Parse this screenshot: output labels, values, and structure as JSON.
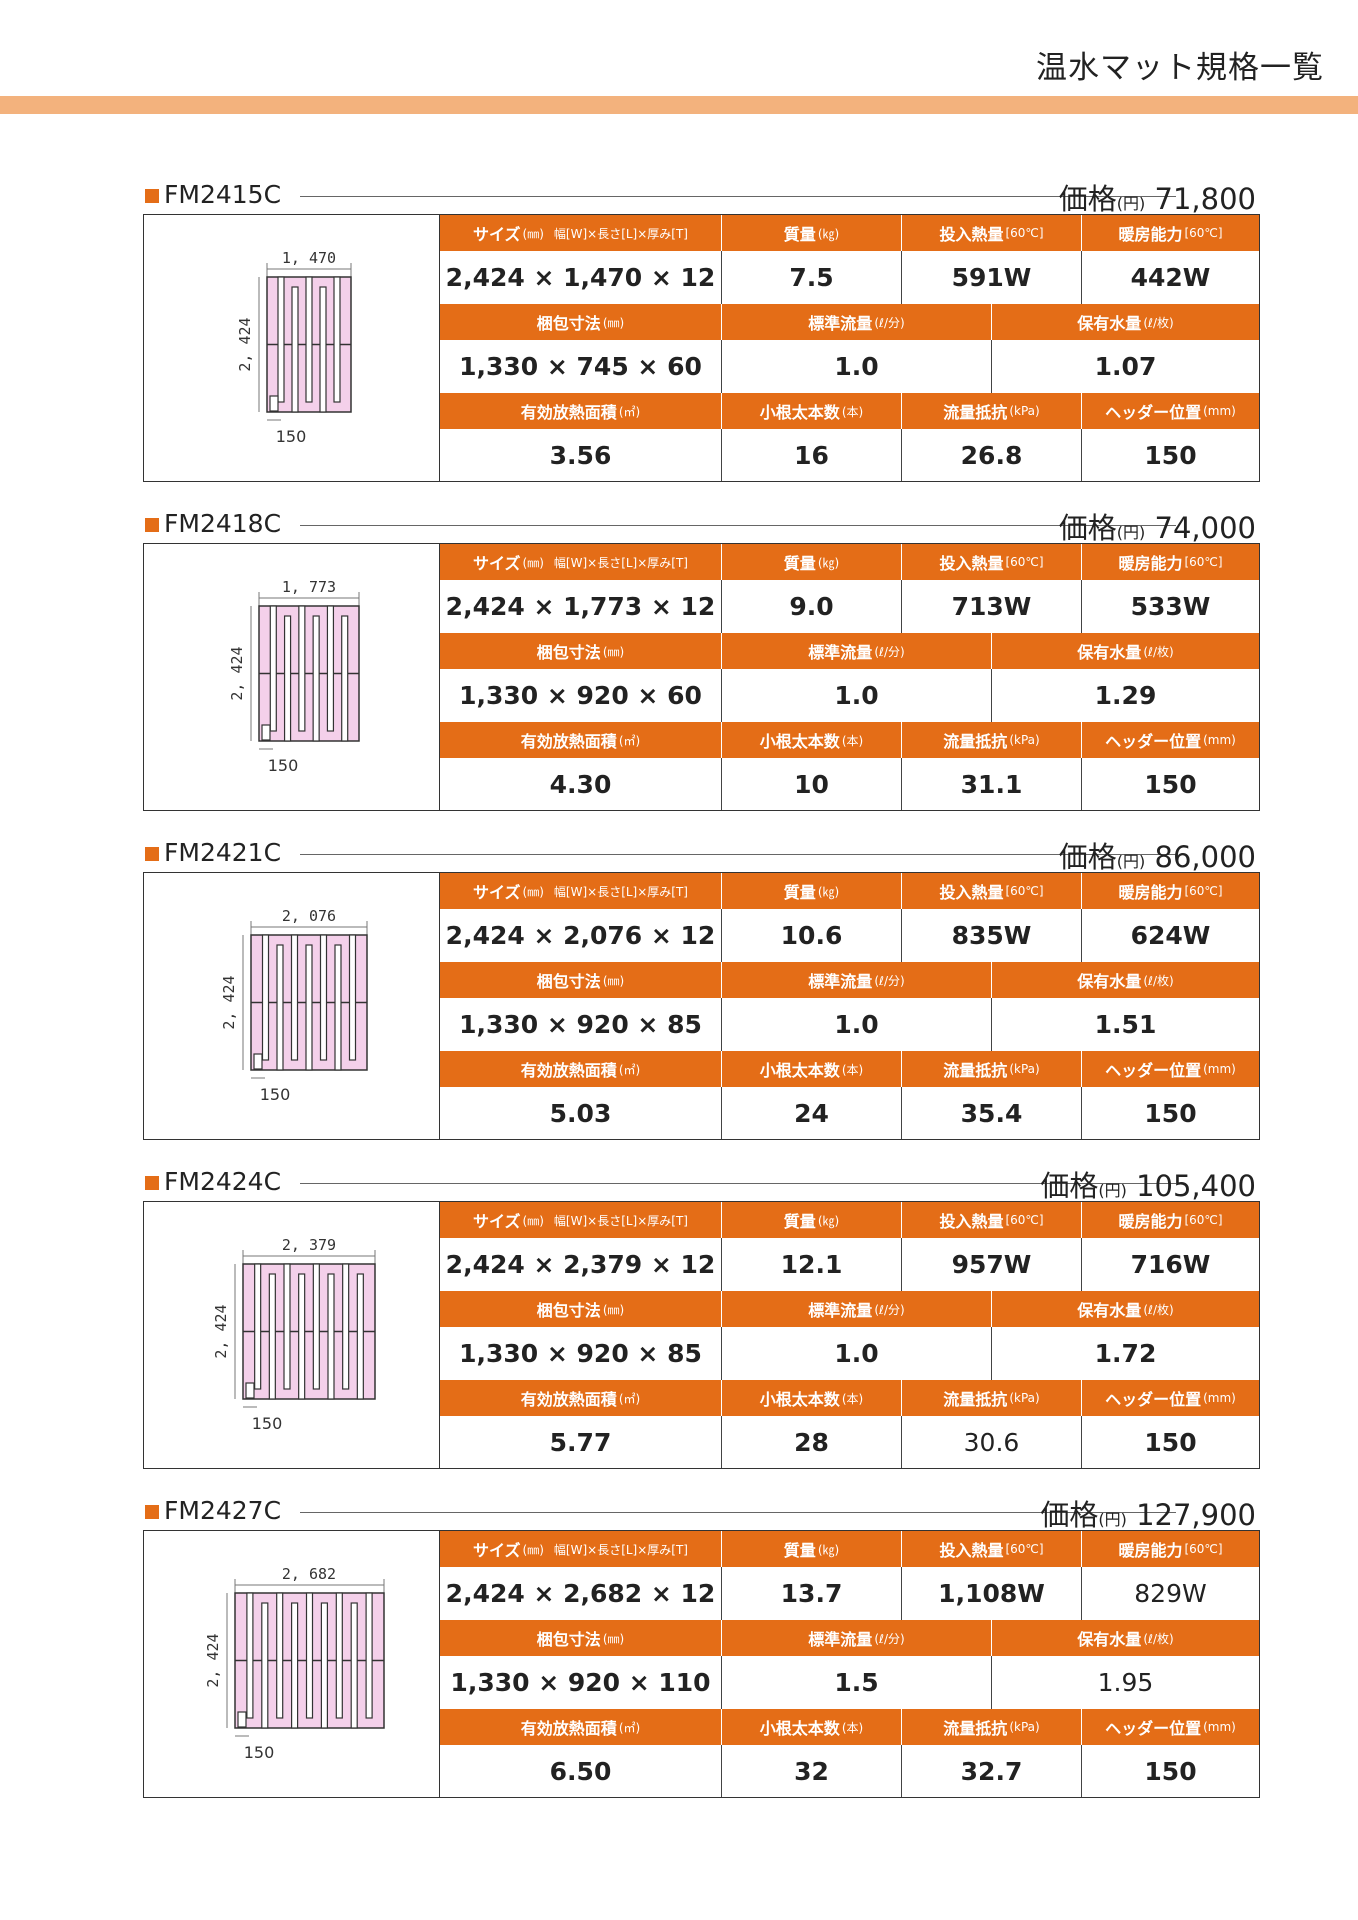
{
  "page_title": "温水マット規格一覧",
  "price_label": "価格",
  "price_unit": "(円)",
  "labels": {
    "size": "サイズ",
    "size_unit": "(㎜)",
    "size_detail": "幅[W]×長さ[L]×厚み[T]",
    "mass": "質量",
    "mass_unit": "(㎏)",
    "heat_input": "投入熱量",
    "heat_input_unit": "[60℃]",
    "heating_capacity": "暖房能力",
    "heating_capacity_unit": "[60℃]",
    "package_size": "梱包寸法",
    "package_size_unit": "(㎜)",
    "flow_rate": "標準流量",
    "flow_rate_unit": "(ℓ/分)",
    "water_volume": "保有水量",
    "water_volume_unit": "(ℓ/枚)",
    "effective_area": "有効放熱面積",
    "effective_area_unit": "(㎡)",
    "branch_count": "小根太本数",
    "branch_count_unit": "(本)",
    "flow_resistance": "流量抵抗",
    "flow_resistance_unit": "(kPa)",
    "header_position": "ヘッダー位置",
    "header_position_unit": "(mm)"
  },
  "products": [
    {
      "model": "FM2415C",
      "price": "71,800",
      "dim_width": "1, 470",
      "dim_length": "2, 424",
      "dim_header": "150",
      "size": "2,424 × 1,470 × 12",
      "mass": "7.5",
      "heat_input": "591W",
      "heating_capacity": "442W",
      "package_size": "1,330 × 745 × 60",
      "flow_rate": "1.0",
      "water_volume": "1.07",
      "effective_area": "3.56",
      "branch_count": "16",
      "flow_resistance": "26.8",
      "header_position": "150",
      "drawing": {
        "cols": 6,
        "w_ratio": 0.62
      }
    },
    {
      "model": "FM2418C",
      "price": "74,000",
      "dim_width": "1, 773",
      "dim_length": "2, 424",
      "dim_header": "150",
      "size": "2,424 × 1,773 × 12",
      "mass": "9.0",
      "heat_input": "713W",
      "heating_capacity": "533W",
      "package_size": "1,330 × 920 × 60",
      "flow_rate": "1.0",
      "water_volume": "1.29",
      "effective_area": "4.30",
      "branch_count": "10",
      "flow_resistance": "31.1",
      "header_position": "150",
      "drawing": {
        "cols": 7,
        "w_ratio": 0.74
      }
    },
    {
      "model": "FM2421C",
      "price": "86,000",
      "dim_width": "2, 076",
      "dim_length": "2, 424",
      "dim_header": "150",
      "size": "2,424 × 2,076 × 12",
      "mass": "10.6",
      "heat_input": "835W",
      "heating_capacity": "624W",
      "package_size": "1,330 × 920 × 85",
      "flow_rate": "1.0",
      "water_volume": "1.51",
      "effective_area": "5.03",
      "branch_count": "24",
      "flow_resistance": "35.4",
      "header_position": "150",
      "drawing": {
        "cols": 8,
        "w_ratio": 0.86
      }
    },
    {
      "model": "FM2424C",
      "price": "105,400",
      "dim_width": "2, 379",
      "dim_length": "2, 424",
      "dim_header": "150",
      "size": "2,424 × 2,379 × 12",
      "mass": "12.1",
      "heat_input": "957W",
      "heating_capacity": "716W",
      "package_size": "1,330 × 920 × 85",
      "flow_rate": "1.0",
      "water_volume": "1.72",
      "effective_area": "5.77",
      "branch_count": "28",
      "flow_resistance": "30.6",
      "header_position": "150",
      "drawing": {
        "cols": 9,
        "w_ratio": 0.98
      }
    },
    {
      "model": "FM2427C",
      "price": "127,900",
      "dim_width": "2, 682",
      "dim_length": "2, 424",
      "dim_header": "150",
      "size": "2,424 × 2,682 × 12",
      "mass": "13.7",
      "heat_input": "1,108W",
      "heating_capacity": "829W",
      "package_size": "1,330 × 920 × 110",
      "flow_rate": "1.5",
      "water_volume": "1.95",
      "effective_area": "6.50",
      "branch_count": "32",
      "flow_resistance": "32.7",
      "header_position": "150",
      "drawing": {
        "cols": 10,
        "w_ratio": 1.1
      }
    }
  ]
}
